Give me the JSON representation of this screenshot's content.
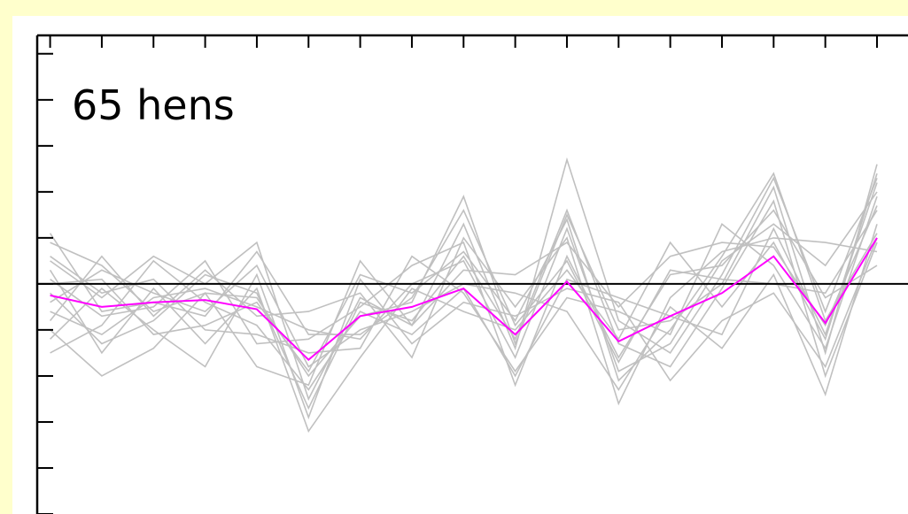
{
  "colors": {
    "background": "#FFFFCC",
    "plot_area": "#FFFFFF",
    "axis": "#000000",
    "individual_series": "#C0C0C0",
    "mean_series": "#FF00FF"
  },
  "chart_data": {
    "type": "line",
    "title": "65 hens",
    "xlabel": "",
    "ylabel": "",
    "x": [
      1,
      2,
      3,
      4,
      5,
      6,
      7,
      8,
      9,
      10,
      11,
      12,
      13,
      14,
      15,
      16,
      17
    ],
    "xlim": [
      0.75,
      17.6
    ],
    "ylim": [
      -5,
      5.4
    ],
    "y_ticks": [
      -5,
      -4,
      -3,
      -2,
      -1,
      0,
      1,
      2,
      3,
      4,
      5
    ],
    "reference_line": 0,
    "grid": false,
    "legend": "none",
    "individual_series_count": 65,
    "mean_series": {
      "values": [
        -0.25,
        -0.5,
        -0.4,
        -0.35,
        -0.55,
        -1.65,
        -0.7,
        -0.5,
        -0.1,
        -1.1,
        0.05,
        -1.25,
        -0.7,
        -0.2,
        0.6,
        -0.85,
        1.0
      ]
    },
    "series": [
      {
        "values": [
          0.9,
          0.4,
          -0.6,
          -0.2,
          -0.3,
          -2.0,
          -0.7,
          -0.4,
          1.9,
          -1.3,
          1.5,
          -1.0,
          -0.8,
          0.0,
          2.1,
          -1.5,
          2.6
        ]
      },
      {
        "values": [
          0.5,
          -0.3,
          0.6,
          0.0,
          0.9,
          -2.5,
          -0.3,
          -0.9,
          0.3,
          0.2,
          0.9,
          -0.5,
          0.6,
          0.9,
          0.8,
          -0.9,
          1.7
        ]
      },
      {
        "values": [
          -0.6,
          -1.1,
          -0.3,
          -0.1,
          -0.5,
          -1.0,
          -1.2,
          0.0,
          0.5,
          -1.6,
          1.2,
          -1.9,
          -1.3,
          0.5,
          1.3,
          0.4,
          2.0
        ]
      },
      {
        "values": [
          -1.2,
          -0.1,
          -1.0,
          -1.8,
          0.2,
          -2.9,
          0.1,
          -1.3,
          -0.4,
          -0.7,
          -0.1,
          -0.4,
          -2.1,
          -0.8,
          -0.2,
          -1.8,
          1.0
        ]
      },
      {
        "values": [
          0.1,
          -0.7,
          -0.5,
          0.5,
          -1.3,
          -1.2,
          -0.5,
          0.4,
          0.9,
          -2.2,
          0.6,
          -1.6,
          0.2,
          0.4,
          1.6,
          -0.3,
          0.4
        ]
      },
      {
        "values": [
          -0.4,
          0.3,
          -0.2,
          -0.6,
          0.4,
          -1.8,
          -1.0,
          -0.6,
          0.0,
          -0.2,
          -0.6,
          -2.3,
          -0.5,
          -1.4,
          0.2,
          -2.4,
          1.3
        ]
      },
      {
        "values": [
          -1.0,
          -2.0,
          -1.4,
          -0.2,
          -1.8,
          -2.2,
          0.5,
          -0.9,
          1.3,
          -1.4,
          2.7,
          -0.8,
          -1.5,
          0.2,
          2.3,
          -0.6,
          2.3
        ]
      },
      {
        "values": [
          0.3,
          -1.5,
          -0.1,
          -1.3,
          -0.1,
          -3.2,
          -1.6,
          -0.1,
          -0.6,
          -1.0,
          0.3,
          -1.2,
          0.9,
          -0.5,
          0.9,
          -1.2,
          2.4
        ]
      },
      {
        "values": [
          -0.8,
          0.6,
          -0.7,
          0.3,
          -0.7,
          -0.6,
          -0.2,
          -1.6,
          1.0,
          -0.5,
          1.0,
          -2.6,
          -0.3,
          0.7,
          1.0,
          0.9,
          0.7
        ]
      },
      {
        "values": [
          0.6,
          -0.2,
          0.1,
          -1.0,
          -1.1,
          -1.5,
          -1.4,
          0.6,
          -0.2,
          -1.9,
          -0.3,
          -0.6,
          -1.1,
          1.3,
          0.4,
          -1.4,
          1.9
        ]
      },
      {
        "values": [
          -0.2,
          -1.3,
          -0.8,
          0.2,
          -0.2,
          -2.7,
          -0.4,
          -0.8,
          0.6,
          -1.2,
          1.6,
          -1.3,
          -1.8,
          -0.1,
          1.8,
          -2.0,
          0.9
        ]
      },
      {
        "values": [
          1.1,
          -0.6,
          -0.4,
          -0.7,
          0.7,
          -1.1,
          -1.1,
          -0.3,
          1.6,
          -0.9,
          0.5,
          -1.7,
          0.3,
          0.1,
          0.0,
          -0.2,
          1.6
        ]
      },
      {
        "values": [
          -1.5,
          -0.9,
          0.5,
          -0.4,
          -0.9,
          -2.3,
          -0.6,
          -1.1,
          -0.1,
          -2.0,
          0.1,
          -0.3,
          -0.7,
          -1.1,
          1.2,
          -1.1,
          2.2
        ]
      },
      {
        "values": [
          0.0,
          0.1,
          -1.1,
          -0.9,
          -0.4,
          -1.9,
          0.2,
          -0.2,
          0.7,
          -0.8,
          1.4,
          -2.1,
          -1.0,
          0.6,
          2.4,
          -0.8,
          1.1
        ]
      }
    ]
  }
}
